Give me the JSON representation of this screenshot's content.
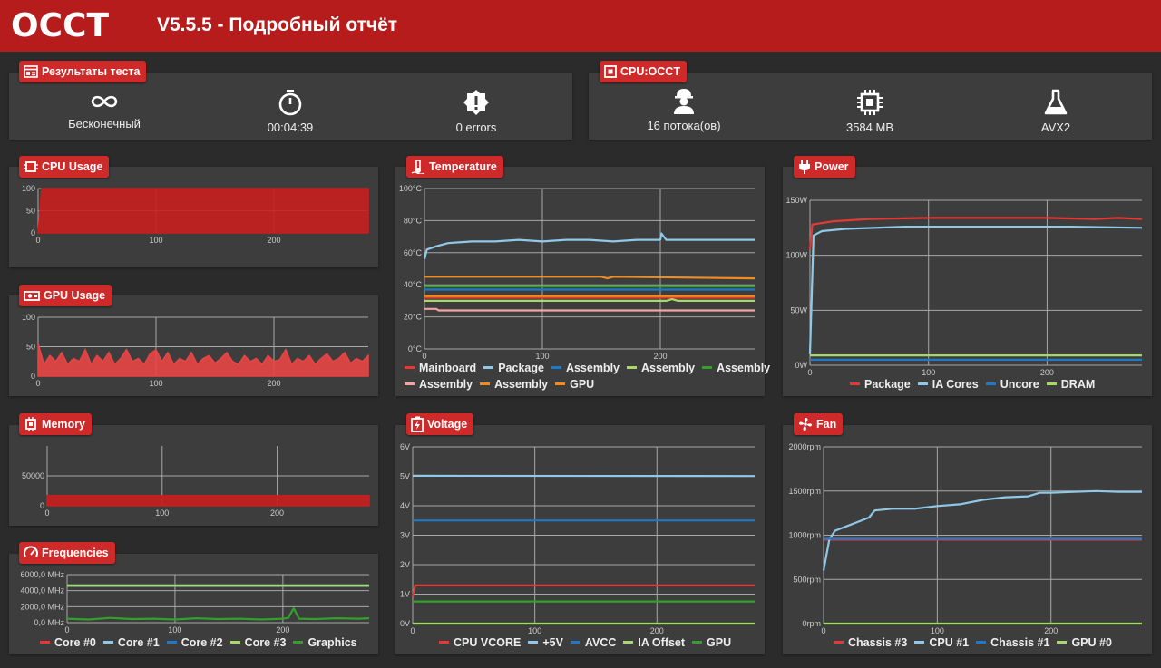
{
  "header": {
    "logo": "OCCT",
    "title": "V5.5.5 - Подробный отчёт"
  },
  "test_results": {
    "label": "Результаты теста",
    "items": [
      {
        "icon": "infinity-icon",
        "value": "Бесконечный"
      },
      {
        "icon": "stopwatch-icon",
        "value": "00:04:39"
      },
      {
        "icon": "error-badge-icon",
        "value": "0 errors"
      }
    ]
  },
  "cpu_test": {
    "label": "CPU:OCCT",
    "items": [
      {
        "icon": "worker-icon",
        "value": "16 потока(ов)"
      },
      {
        "icon": "chip-icon",
        "value": "3584 MB"
      },
      {
        "icon": "flask-icon",
        "value": "AVX2"
      }
    ]
  },
  "colors": {
    "accent": "#b71c1c",
    "red": "#e53935",
    "lightblue": "#90c8e8",
    "blue": "#1f78c8",
    "lightgreen": "#a6d96a",
    "green": "#33a02c",
    "pink": "#f4a3a3",
    "orange": "#f28c1c"
  },
  "chart_data": [
    {
      "id": "cpu",
      "label": "CPU Usage",
      "type": "area",
      "xticks": [
        "0",
        "100",
        "200"
      ],
      "yticks": [
        "0",
        "50",
        "100"
      ],
      "xlim": [
        0,
        280
      ],
      "ylim": [
        0,
        100
      ],
      "series": [
        {
          "color": "#c81e1e",
          "values": [
            [
              0,
              0
            ],
            [
              3,
              100
            ],
            [
              280,
              100
            ]
          ]
        }
      ]
    },
    {
      "id": "gpu",
      "label": "GPU Usage",
      "type": "area",
      "xticks": [
        "0",
        "100",
        "200"
      ],
      "yticks": [
        "0",
        "50",
        "100"
      ],
      "xlim": [
        0,
        280
      ],
      "ylim": [
        0,
        100
      ],
      "series": [
        {
          "color": "#e84545",
          "values": [
            [
              0,
              55
            ],
            [
              5,
              20
            ],
            [
              10,
              35
            ],
            [
              15,
              25
            ],
            [
              20,
              40
            ],
            [
              25,
              20
            ],
            [
              30,
              30
            ],
            [
              35,
              25
            ],
            [
              40,
              45
            ],
            [
              45,
              20
            ],
            [
              50,
              35
            ],
            [
              55,
              25
            ],
            [
              60,
              40
            ],
            [
              65,
              20
            ],
            [
              70,
              30
            ],
            [
              75,
              45
            ],
            [
              80,
              25
            ],
            [
              85,
              30
            ],
            [
              90,
              20
            ],
            [
              95,
              38
            ],
            [
              100,
              45
            ],
            [
              105,
              25
            ],
            [
              110,
              40
            ],
            [
              115,
              20
            ],
            [
              120,
              30
            ],
            [
              125,
              25
            ],
            [
              130,
              40
            ],
            [
              135,
              20
            ],
            [
              140,
              30
            ],
            [
              145,
              35
            ],
            [
              150,
              22
            ],
            [
              155,
              30
            ],
            [
              160,
              40
            ],
            [
              165,
              25
            ],
            [
              170,
              20
            ],
            [
              175,
              35
            ],
            [
              180,
              25
            ],
            [
              185,
              30
            ],
            [
              190,
              20
            ],
            [
              195,
              35
            ],
            [
              200,
              25
            ],
            [
              205,
              28
            ],
            [
              210,
              45
            ],
            [
              215,
              20
            ],
            [
              220,
              30
            ],
            [
              225,
              25
            ],
            [
              230,
              35
            ],
            [
              235,
              20
            ],
            [
              240,
              30
            ],
            [
              245,
              38
            ],
            [
              250,
              25
            ],
            [
              255,
              30
            ],
            [
              260,
              40
            ],
            [
              265,
              22
            ],
            [
              270,
              30
            ],
            [
              275,
              25
            ],
            [
              280,
              35
            ]
          ]
        }
      ]
    },
    {
      "id": "memory",
      "label": "Memory",
      "type": "area",
      "xticks": [
        "0",
        "100",
        "200"
      ],
      "yticks": [
        "0",
        "50000"
      ],
      "xlim": [
        0,
        280
      ],
      "ylim": [
        0,
        100000
      ],
      "series": [
        {
          "color": "#c81e1e",
          "values": [
            [
              0,
              17000
            ],
            [
              280,
              17000
            ]
          ]
        }
      ]
    },
    {
      "id": "freq",
      "label": "Frequencies",
      "type": "line",
      "xticks": [
        "0",
        "100",
        "200"
      ],
      "yticks": [
        "0,0 MHz",
        "2000,0 MHz",
        "4000,0 MHz",
        "6000,0 MHz"
      ],
      "xlim": [
        0,
        280
      ],
      "ylim": [
        0,
        6000
      ],
      "series": [
        {
          "name": "Core #0",
          "color": "#e53935",
          "values": [
            [
              0,
              4600
            ],
            [
              280,
              4600
            ]
          ]
        },
        {
          "name": "Core #1",
          "color": "#90c8e8",
          "values": [
            [
              0,
              4600
            ],
            [
              280,
              4600
            ]
          ]
        },
        {
          "name": "Core #2",
          "color": "#1f78c8",
          "values": [
            [
              0,
              4650
            ],
            [
              280,
              4650
            ]
          ]
        },
        {
          "name": "Core #3",
          "color": "#a6d96a",
          "values": [
            [
              0,
              4650
            ],
            [
              280,
              4650
            ]
          ]
        },
        {
          "name": "Graphics",
          "color": "#33a02c",
          "values": [
            [
              0,
              500
            ],
            [
              20,
              400
            ],
            [
              40,
              600
            ],
            [
              60,
              450
            ],
            [
              80,
              500
            ],
            [
              100,
              400
            ],
            [
              120,
              550
            ],
            [
              140,
              450
            ],
            [
              160,
              500
            ],
            [
              180,
              400
            ],
            [
              200,
              500
            ],
            [
              205,
              600
            ],
            [
              210,
              1800
            ],
            [
              215,
              500
            ],
            [
              230,
              450
            ],
            [
              250,
              550
            ],
            [
              270,
              500
            ],
            [
              280,
              550
            ]
          ]
        }
      ]
    },
    {
      "id": "temp",
      "label": "Temperature",
      "type": "line",
      "xticks": [
        "0",
        "100",
        "200"
      ],
      "yticks": [
        "0°C",
        "20°C",
        "40°C",
        "60°C",
        "80°C",
        "100°C"
      ],
      "xlim": [
        0,
        280
      ],
      "ylim": [
        0,
        100
      ],
      "series": [
        {
          "name": "Mainboard",
          "color": "#e53935",
          "values": [
            [
              0,
              32
            ],
            [
              280,
              32
            ]
          ]
        },
        {
          "name": "Package",
          "color": "#90c8e8",
          "values": [
            [
              0,
              56
            ],
            [
              2,
              62
            ],
            [
              10,
              64
            ],
            [
              20,
              66
            ],
            [
              40,
              67
            ],
            [
              60,
              67
            ],
            [
              80,
              68
            ],
            [
              100,
              67
            ],
            [
              120,
              68
            ],
            [
              140,
              68
            ],
            [
              160,
              67
            ],
            [
              180,
              68
            ],
            [
              200,
              68
            ],
            [
              201,
              72
            ],
            [
              205,
              68
            ],
            [
              240,
              68
            ],
            [
              260,
              68
            ],
            [
              280,
              68
            ]
          ]
        },
        {
          "name": "Assembly",
          "color": "#1f78c8",
          "values": [
            [
              0,
              37
            ],
            [
              280,
              37
            ]
          ]
        },
        {
          "name": "Assembly",
          "color": "#a6d96a",
          "values": [
            [
              0,
              30
            ],
            [
              205,
              30
            ],
            [
              210,
              31
            ],
            [
              215,
              30
            ],
            [
              280,
              30
            ]
          ]
        },
        {
          "name": "Assembly",
          "color": "#33a02c",
          "values": [
            [
              0,
              39
            ],
            [
              280,
              39
            ]
          ]
        },
        {
          "name": "Assembly",
          "color": "#f4a3a3",
          "values": [
            [
              0,
              25
            ],
            [
              10,
              25
            ],
            [
              12,
              24
            ],
            [
              280,
              24
            ]
          ]
        },
        {
          "name": "Assembly",
          "color": "#f28c1c",
          "values": [
            [
              0,
              45
            ],
            [
              150,
              45
            ],
            [
              155,
              44
            ],
            [
              160,
              45
            ],
            [
              280,
              44
            ]
          ]
        },
        {
          "name": "GPU",
          "color": "#f28c1c",
          "values": [
            [
              0,
              33
            ],
            [
              280,
              33
            ]
          ]
        }
      ]
    },
    {
      "id": "voltage",
      "label": "Voltage",
      "type": "line",
      "xticks": [
        "0",
        "100",
        "200"
      ],
      "yticks": [
        "0V",
        "1V",
        "2V",
        "3V",
        "4V",
        "5V",
        "6V"
      ],
      "xlim": [
        0,
        280
      ],
      "ylim": [
        0,
        6
      ],
      "series": [
        {
          "name": "CPU VCORE",
          "color": "#e53935",
          "values": [
            [
              0,
              0.9
            ],
            [
              2,
              1.3
            ],
            [
              280,
              1.3
            ]
          ]
        },
        {
          "name": "+5V",
          "color": "#90c8e8",
          "values": [
            [
              0,
              5.02
            ],
            [
              280,
              5.01
            ]
          ]
        },
        {
          "name": "AVCC",
          "color": "#1f78c8",
          "values": [
            [
              0,
              3.5
            ],
            [
              280,
              3.5
            ]
          ]
        },
        {
          "name": "IA Offset",
          "color": "#a6d96a",
          "values": [
            [
              0,
              0
            ],
            [
              280,
              0
            ]
          ]
        },
        {
          "name": "GPU",
          "color": "#33a02c",
          "values": [
            [
              0,
              0.75
            ],
            [
              280,
              0.75
            ]
          ]
        }
      ]
    },
    {
      "id": "power",
      "label": "Power",
      "type": "line",
      "xticks": [
        "0",
        "100",
        "200"
      ],
      "yticks": [
        "0W",
        "50W",
        "100W",
        "150W"
      ],
      "xlim": [
        0,
        280
      ],
      "ylim": [
        0,
        150
      ],
      "series": [
        {
          "name": "Package",
          "color": "#e53935",
          "values": [
            [
              0,
              105
            ],
            [
              2,
              128
            ],
            [
              20,
              131
            ],
            [
              50,
              133
            ],
            [
              100,
              134
            ],
            [
              150,
              134
            ],
            [
              200,
              134
            ],
            [
              240,
              133
            ],
            [
              260,
              134
            ],
            [
              280,
              133
            ]
          ]
        },
        {
          "name": "IA Cores",
          "color": "#90c8e8",
          "values": [
            [
              0,
              10
            ],
            [
              3,
              118
            ],
            [
              10,
              122
            ],
            [
              30,
              124
            ],
            [
              80,
              126
            ],
            [
              150,
              126
            ],
            [
              220,
              126
            ],
            [
              280,
              125
            ]
          ]
        },
        {
          "name": "Uncore",
          "color": "#1f78c8",
          "values": [
            [
              0,
              5
            ],
            [
              280,
              5
            ]
          ]
        },
        {
          "name": "DRAM",
          "color": "#a6d96a",
          "values": [
            [
              0,
              9
            ],
            [
              280,
              9
            ]
          ]
        }
      ]
    },
    {
      "id": "fan",
      "label": "Fan",
      "type": "line",
      "xticks": [
        "0",
        "100",
        "200"
      ],
      "yticks": [
        "0rpm",
        "500rpm",
        "1000rpm",
        "1500rpm",
        "2000rpm"
      ],
      "xlim": [
        0,
        280
      ],
      "ylim": [
        0,
        2000
      ],
      "series": [
        {
          "name": "Chassis #3",
          "color": "#e53935",
          "values": [
            [
              0,
              950
            ],
            [
              280,
              950
            ]
          ]
        },
        {
          "name": "CPU #1",
          "color": "#90c8e8",
          "values": [
            [
              0,
              600
            ],
            [
              5,
              950
            ],
            [
              10,
              1050
            ],
            [
              20,
              1100
            ],
            [
              30,
              1150
            ],
            [
              40,
              1200
            ],
            [
              45,
              1280
            ],
            [
              60,
              1300
            ],
            [
              80,
              1300
            ],
            [
              100,
              1330
            ],
            [
              120,
              1350
            ],
            [
              140,
              1400
            ],
            [
              160,
              1430
            ],
            [
              180,
              1440
            ],
            [
              190,
              1480
            ],
            [
              200,
              1480
            ],
            [
              220,
              1490
            ],
            [
              240,
              1500
            ],
            [
              260,
              1490
            ],
            [
              280,
              1490
            ]
          ]
        },
        {
          "name": "Chassis #1",
          "color": "#1f78c8",
          "values": [
            [
              0,
              960
            ],
            [
              280,
              960
            ]
          ]
        },
        {
          "name": "GPU #0",
          "color": "#a6d96a",
          "values": [
            [
              0,
              0
            ],
            [
              280,
              0
            ]
          ]
        }
      ]
    }
  ]
}
